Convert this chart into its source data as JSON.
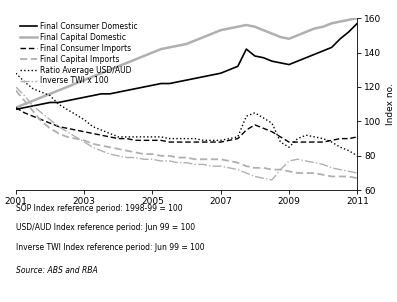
{
  "ylabel": "Index no.",
  "xlim": [
    2001,
    2011
  ],
  "ylim": [
    60,
    160
  ],
  "yticks": [
    60,
    80,
    100,
    120,
    140,
    160
  ],
  "xticks": [
    2001,
    2003,
    2005,
    2007,
    2009,
    2011
  ],
  "legend_labels": [
    "Final Consumer Domestic",
    "Final Capital Domestic",
    "Final Consumer Imports",
    "Final Capital Imports",
    "Ratio Average USD/AUD",
    "Inverse TWI x 100"
  ],
  "footnotes": [
    "SOP Index reference period: 1998-99 = 100",
    "USD/AUD Index reference period: Jun 99 = 100",
    "Inverse TWI Index reference period: Jun 99 = 100"
  ],
  "source": "Source: ABS and RBA",
  "series": {
    "final_consumer_domestic": {
      "x": [
        2001.0,
        2001.25,
        2001.5,
        2001.75,
        2002.0,
        2002.25,
        2002.5,
        2002.75,
        2003.0,
        2003.25,
        2003.5,
        2003.75,
        2004.0,
        2004.25,
        2004.5,
        2004.75,
        2005.0,
        2005.25,
        2005.5,
        2005.75,
        2006.0,
        2006.25,
        2006.5,
        2006.75,
        2007.0,
        2007.25,
        2007.5,
        2007.75,
        2008.0,
        2008.25,
        2008.5,
        2008.75,
        2009.0,
        2009.25,
        2009.5,
        2009.75,
        2010.0,
        2010.25,
        2010.5,
        2010.75,
        2011.0
      ],
      "y": [
        107,
        108,
        109,
        110,
        111,
        111,
        112,
        113,
        114,
        115,
        116,
        116,
        117,
        118,
        119,
        120,
        121,
        122,
        122,
        123,
        124,
        125,
        126,
        127,
        128,
        130,
        132,
        142,
        138,
        137,
        135,
        134,
        133,
        135,
        137,
        139,
        141,
        143,
        148,
        152,
        157
      ],
      "color": "#000000",
      "linewidth": 1.2
    },
    "final_capital_domestic": {
      "x": [
        2001.0,
        2001.25,
        2001.5,
        2001.75,
        2002.0,
        2002.25,
        2002.5,
        2002.75,
        2003.0,
        2003.25,
        2003.5,
        2003.75,
        2004.0,
        2004.25,
        2004.5,
        2004.75,
        2005.0,
        2005.25,
        2005.5,
        2005.75,
        2006.0,
        2006.25,
        2006.5,
        2006.75,
        2007.0,
        2007.25,
        2007.5,
        2007.75,
        2008.0,
        2008.25,
        2008.5,
        2008.75,
        2009.0,
        2009.25,
        2009.5,
        2009.75,
        2010.0,
        2010.25,
        2010.5,
        2010.75,
        2011.0
      ],
      "y": [
        108,
        110,
        112,
        114,
        116,
        118,
        120,
        122,
        124,
        126,
        128,
        130,
        132,
        134,
        136,
        138,
        140,
        142,
        143,
        144,
        145,
        147,
        149,
        151,
        153,
        154,
        155,
        156,
        155,
        153,
        151,
        149,
        148,
        150,
        152,
        154,
        155,
        157,
        158,
        159,
        160
      ],
      "color": "#b0b0b0",
      "linewidth": 1.8
    },
    "final_consumer_imports": {
      "x": [
        2001.0,
        2001.25,
        2001.5,
        2001.75,
        2002.0,
        2002.25,
        2002.5,
        2002.75,
        2003.0,
        2003.25,
        2003.5,
        2003.75,
        2004.0,
        2004.25,
        2004.5,
        2004.75,
        2005.0,
        2005.25,
        2005.5,
        2005.75,
        2006.0,
        2006.25,
        2006.5,
        2006.75,
        2007.0,
        2007.25,
        2007.5,
        2007.75,
        2008.0,
        2008.25,
        2008.5,
        2008.75,
        2009.0,
        2009.25,
        2009.5,
        2009.75,
        2010.0,
        2010.25,
        2010.5,
        2010.75,
        2011.0
      ],
      "y": [
        108,
        105,
        103,
        101,
        99,
        97,
        96,
        95,
        94,
        93,
        92,
        91,
        90,
        90,
        89,
        89,
        89,
        89,
        88,
        88,
        88,
        88,
        88,
        88,
        88,
        89,
        90,
        95,
        98,
        96,
        94,
        91,
        88,
        88,
        88,
        88,
        88,
        89,
        90,
        90,
        91
      ],
      "color": "#000000",
      "linewidth": 1.0
    },
    "final_capital_imports": {
      "x": [
        2001.0,
        2001.25,
        2001.5,
        2001.75,
        2002.0,
        2002.25,
        2002.5,
        2002.75,
        2003.0,
        2003.25,
        2003.5,
        2003.75,
        2004.0,
        2004.25,
        2004.5,
        2004.75,
        2005.0,
        2005.25,
        2005.5,
        2005.75,
        2006.0,
        2006.25,
        2006.5,
        2006.75,
        2007.0,
        2007.25,
        2007.5,
        2007.75,
        2008.0,
        2008.25,
        2008.5,
        2008.75,
        2009.0,
        2009.25,
        2009.5,
        2009.75,
        2010.0,
        2010.25,
        2010.5,
        2010.75,
        2011.0
      ],
      "y": [
        118,
        112,
        106,
        100,
        96,
        93,
        91,
        90,
        89,
        87,
        86,
        85,
        84,
        83,
        82,
        81,
        81,
        80,
        80,
        79,
        79,
        78,
        78,
        78,
        78,
        77,
        76,
        74,
        73,
        73,
        72,
        72,
        71,
        70,
        70,
        70,
        69,
        68,
        68,
        68,
        67
      ],
      "color": "#b0b0b0",
      "linewidth": 1.3
    },
    "ratio_usd_aud": {
      "x": [
        2001.0,
        2001.25,
        2001.5,
        2001.75,
        2002.0,
        2002.25,
        2002.5,
        2002.75,
        2003.0,
        2003.25,
        2003.5,
        2003.75,
        2004.0,
        2004.25,
        2004.5,
        2004.75,
        2005.0,
        2005.25,
        2005.5,
        2005.75,
        2006.0,
        2006.25,
        2006.5,
        2006.75,
        2007.0,
        2007.25,
        2007.5,
        2007.75,
        2008.0,
        2008.25,
        2008.5,
        2008.75,
        2009.0,
        2009.25,
        2009.5,
        2009.75,
        2010.0,
        2010.25,
        2010.5,
        2010.75,
        2011.0
      ],
      "y": [
        128,
        123,
        119,
        117,
        115,
        110,
        107,
        104,
        101,
        97,
        95,
        93,
        91,
        91,
        91,
        91,
        91,
        91,
        90,
        90,
        90,
        90,
        89,
        89,
        89,
        90,
        91,
        103,
        105,
        102,
        99,
        88,
        85,
        90,
        92,
        91,
        90,
        88,
        85,
        83,
        80
      ],
      "color": "#000000",
      "linewidth": 1.0
    },
    "inverse_twi": {
      "x": [
        2001.0,
        2001.25,
        2001.5,
        2001.75,
        2002.0,
        2002.25,
        2002.5,
        2002.75,
        2003.0,
        2003.25,
        2003.5,
        2003.75,
        2004.0,
        2004.25,
        2004.5,
        2004.75,
        2005.0,
        2005.25,
        2005.5,
        2005.75,
        2006.0,
        2006.25,
        2006.5,
        2006.75,
        2007.0,
        2007.25,
        2007.5,
        2007.75,
        2008.0,
        2008.25,
        2008.5,
        2008.75,
        2009.0,
        2009.25,
        2009.5,
        2009.75,
        2010.0,
        2010.25,
        2010.5,
        2010.75,
        2011.0
      ],
      "y": [
        120,
        115,
        109,
        105,
        101,
        97,
        94,
        91,
        88,
        85,
        83,
        81,
        80,
        79,
        79,
        78,
        78,
        77,
        77,
        76,
        76,
        75,
        75,
        74,
        74,
        73,
        72,
        70,
        68,
        67,
        66,
        72,
        77,
        78,
        77,
        76,
        75,
        73,
        72,
        71,
        70
      ],
      "color": "#b0b0b0",
      "linewidth": 1.0
    }
  }
}
